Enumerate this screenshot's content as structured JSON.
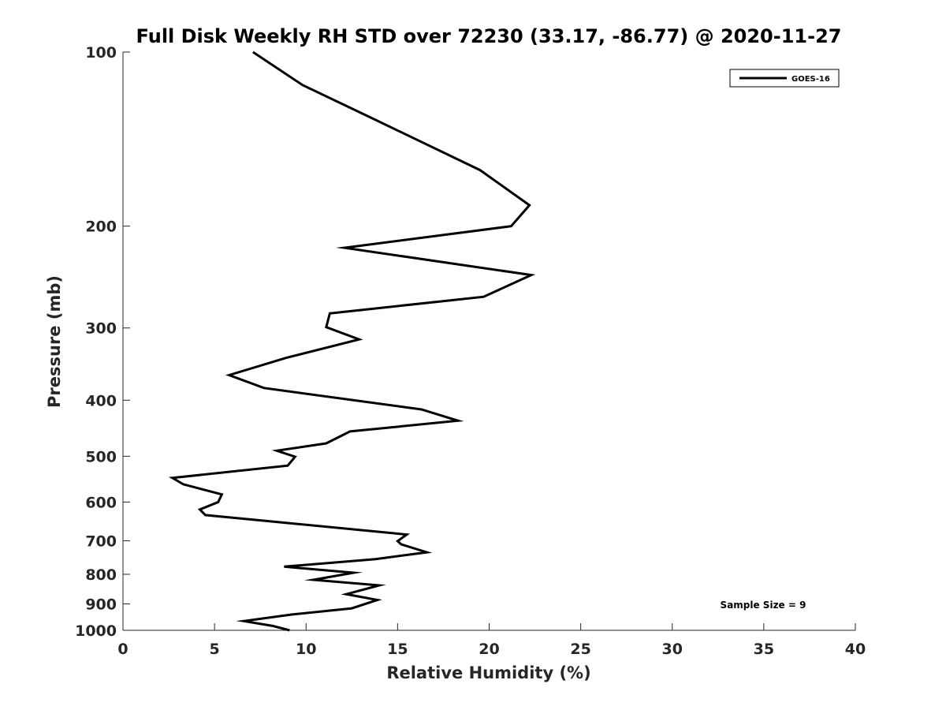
{
  "chart_data": {
    "type": "line",
    "title": "Full Disk Weekly RH STD over 72230 (33.17, -86.77) @ 2020-11-27",
    "xlabel": "Relative Humidity (%)",
    "ylabel": "Pressure (mb)",
    "xlim": [
      0,
      40
    ],
    "ylim": [
      100,
      1000
    ],
    "yscale": "log",
    "y_reversed": true,
    "grid": false,
    "legend_position": "top-right",
    "xticks": [
      0,
      5,
      10,
      15,
      20,
      25,
      30,
      35,
      40
    ],
    "xtick_labels": [
      "0",
      "5",
      "10",
      "15",
      "20",
      "25",
      "30",
      "35",
      "40"
    ],
    "yticks": [
      100,
      200,
      300,
      400,
      500,
      600,
      700,
      800,
      900,
      1000
    ],
    "ytick_labels": [
      "100",
      "200",
      "300",
      "400",
      "500",
      "600",
      "700",
      "800",
      "900",
      "1000"
    ],
    "annotation": "Sample Size = 9",
    "series": [
      {
        "name": "GOES-16",
        "color": "#000000",
        "x": [
          7.1,
          9.8,
          13.8,
          19.5,
          22.2,
          21.2,
          12.1,
          22.3,
          19.7,
          11.3,
          11.1,
          12.9,
          8.9,
          5.8,
          7.7,
          16.3,
          18.3,
          12.4,
          11.1,
          8.4,
          9.4,
          9.0,
          2.7,
          3.3,
          5.4,
          5.2,
          4.2,
          4.5,
          15.5,
          15.0,
          15.2,
          16.6,
          13.8,
          8.8,
          12.6,
          10.4,
          14.0,
          12.2,
          13.9,
          12.5,
          9.2,
          6.6,
          8.2,
          9.1
        ],
        "y": [
          100,
          114,
          131,
          160,
          184,
          200,
          218,
          243,
          265,
          283,
          299,
          314,
          338,
          362,
          381,
          415,
          434,
          453,
          475,
          489,
          501,
          519,
          545,
          559,
          582,
          600,
          618,
          632,
          683,
          701,
          710,
          733,
          753,
          776,
          795,
          818,
          836,
          866,
          886,
          916,
          939,
          964,
          983,
          1000
        ]
      }
    ]
  }
}
